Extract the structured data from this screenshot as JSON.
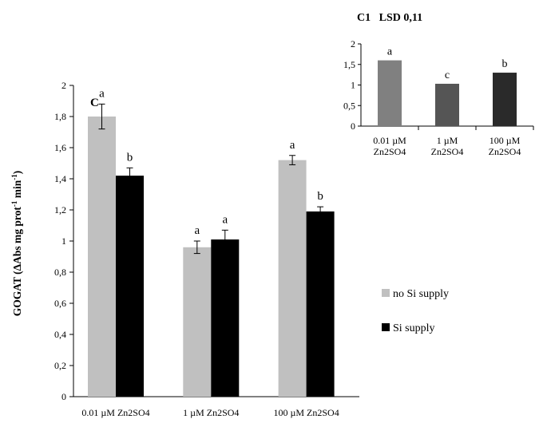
{
  "chart_data": [
    {
      "type": "bar",
      "panel_label": "C",
      "ylabel": "GOGAT (ΔAbs mg prot-1 min-1)",
      "ylabel_main": "GOGAT (ΔAbs mg prot",
      "ylabel_mid": " min",
      "ylabel_sup1": "-1",
      "ylabel_sup2": "-1",
      "ylabel_end": ")",
      "ylim": [
        0,
        2
      ],
      "yticks": [
        "0",
        "0,2",
        "0,4",
        "0,6",
        "0,8",
        "1",
        "1,2",
        "1,4",
        "1,6",
        "1,8",
        "2"
      ],
      "categories": [
        "0.01 µM Zn2SO4",
        "1 µM Zn2SO4",
        "100 µM Zn2SO4"
      ],
      "series": [
        {
          "name": "no Si supply",
          "color": "#c0c0c0",
          "values": [
            1.8,
            0.96,
            1.52
          ],
          "errors": [
            0.08,
            0.04,
            0.03
          ],
          "letters": [
            "a",
            "a",
            "a"
          ]
        },
        {
          "name": "Si supply",
          "color": "#000000",
          "values": [
            1.42,
            1.01,
            1.19
          ],
          "errors": [
            0.05,
            0.06,
            0.03
          ],
          "letters": [
            "b",
            "a",
            "b"
          ]
        }
      ],
      "legend": {
        "position": "right",
        "items": [
          {
            "label": "no Si supply",
            "color": "#c0c0c0"
          },
          {
            "label": "Si supply",
            "color": "#000000"
          }
        ]
      },
      "grid": false
    },
    {
      "type": "bar",
      "title": "C1   LSD 0,11",
      "ylim": [
        0,
        2
      ],
      "yticks": [
        "0",
        "0,5",
        "1",
        "1,5",
        "2"
      ],
      "categories": [
        {
          "line1": "0.01 µM",
          "line2": "Zn2SO4"
        },
        {
          "line1": "1 µM",
          "line2": "Zn2SO4"
        },
        {
          "line1": "100 µM",
          "line2": "Zn2SO4"
        }
      ],
      "values": [
        1.6,
        1.03,
        1.3
      ],
      "colors": [
        "#808080",
        "#555555",
        "#2a2a2a"
      ],
      "letters": [
        "a",
        "c",
        "b"
      ],
      "grid": false
    }
  ]
}
